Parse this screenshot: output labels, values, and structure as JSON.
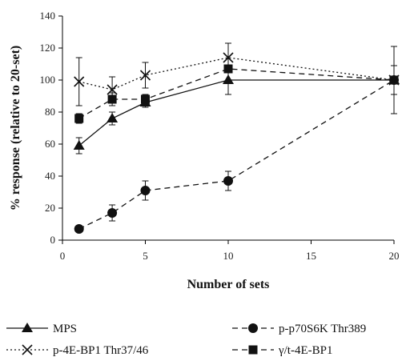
{
  "chart_data": {
    "type": "line",
    "xlabel": "Number of sets",
    "ylabel": "% response (relative to 20-set)",
    "xlim": [
      0,
      20
    ],
    "ylim": [
      0,
      140
    ],
    "xticks": [
      0,
      5,
      10,
      15,
      20
    ],
    "yticks": [
      0,
      20,
      40,
      60,
      80,
      100,
      120,
      140
    ],
    "grid": false,
    "legend_position": "bottom",
    "series": [
      {
        "name": "MPS",
        "marker": "triangle",
        "line": "solid",
        "x": [
          1,
          3,
          5,
          10,
          20
        ],
        "y": [
          59,
          76,
          86,
          100,
          100
        ],
        "err": [
          5,
          4,
          3,
          9,
          0
        ]
      },
      {
        "name": "p-p70S6K Thr389",
        "marker": "circle",
        "line": "dashed",
        "x": [
          1,
          3,
          5,
          10,
          20
        ],
        "y": [
          7,
          17,
          31,
          37,
          100
        ],
        "err": [
          0,
          5,
          6,
          6,
          0
        ]
      },
      {
        "name": "p-4E-BP1 Thr37/46",
        "marker": "cross",
        "line": "dotted",
        "x": [
          1,
          3,
          5,
          10,
          20
        ],
        "y": [
          99,
          94,
          103,
          114,
          100
        ],
        "err": [
          15,
          8,
          8,
          9,
          21
        ]
      },
      {
        "name": "γ/t-4E-BP1",
        "marker": "square",
        "line": "dashed",
        "x": [
          1,
          3,
          5,
          10,
          20
        ],
        "y": [
          76,
          88,
          88,
          107,
          100
        ],
        "err": [
          3,
          4,
          3,
          0,
          9
        ]
      }
    ]
  }
}
